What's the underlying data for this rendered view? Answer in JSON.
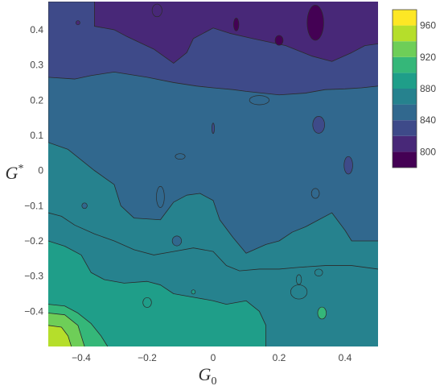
{
  "chart_data": {
    "type": "contour",
    "xlabel": "G",
    "xlabel_sub": "0",
    "ylabel": "G",
    "ylabel_sup": "*",
    "xlim": [
      -0.5,
      0.5
    ],
    "ylim": [
      -0.5,
      0.48
    ],
    "x_ticks": [
      {
        "value": -0.4,
        "label": "−0.4"
      },
      {
        "value": -0.2,
        "label": "−0.2"
      },
      {
        "value": 0,
        "label": "0"
      },
      {
        "value": 0.2,
        "label": "0.2"
      },
      {
        "value": 0.4,
        "label": "0.4"
      }
    ],
    "y_ticks": [
      {
        "value": 0.4,
        "label": "0.4"
      },
      {
        "value": 0.3,
        "label": "0.3"
      },
      {
        "value": 0.2,
        "label": "0.2"
      },
      {
        "value": 0.1,
        "label": "0.1"
      },
      {
        "value": 0,
        "label": "0"
      },
      {
        "value": -0.1,
        "label": "−0.1"
      },
      {
        "value": -0.2,
        "label": "−0.2"
      },
      {
        "value": -0.3,
        "label": "−0.3"
      },
      {
        "value": -0.4,
        "label": "−0.4"
      }
    ],
    "colorbar": {
      "range": [
        780,
        980
      ],
      "levels": [
        780,
        800,
        820,
        840,
        860,
        880,
        900,
        920,
        940,
        960,
        980
      ],
      "tick_labels": [
        {
          "value": 800,
          "label": "800"
        },
        {
          "value": 840,
          "label": "840"
        },
        {
          "value": 880,
          "label": "880"
        },
        {
          "value": 920,
          "label": "920"
        },
        {
          "value": 960,
          "label": "960"
        }
      ],
      "colors": [
        "#440154",
        "#482878",
        "#3e4a89",
        "#31688e",
        "#26828e",
        "#1f9e89",
        "#35b779",
        "#6ece58",
        "#b5de2b",
        "#fde725"
      ]
    },
    "regions": [
      {
        "level": 840,
        "color": "#3e4a89",
        "boundary_lower": [
          [
            -0.5,
            0.265
          ],
          [
            -0.42,
            0.26
          ],
          [
            -0.37,
            0.27
          ],
          [
            -0.3,
            0.28
          ],
          [
            -0.2,
            0.265
          ],
          [
            -0.12,
            0.25
          ],
          [
            -0.05,
            0.24
          ],
          [
            0.0,
            0.235
          ],
          [
            0.06,
            0.23
          ],
          [
            0.1,
            0.225
          ],
          [
            0.2,
            0.215
          ],
          [
            0.28,
            0.22
          ],
          [
            0.34,
            0.23
          ],
          [
            0.4,
            0.232
          ],
          [
            0.45,
            0.235
          ],
          [
            0.5,
            0.24
          ]
        ]
      },
      {
        "level": 820,
        "color": "#482878",
        "boundary_lower": [
          [
            -0.5,
            0.48
          ],
          [
            -0.36,
            0.48
          ],
          [
            -0.36,
            0.41
          ],
          [
            -0.3,
            0.4
          ],
          [
            -0.26,
            0.38
          ],
          [
            -0.18,
            0.345
          ],
          [
            -0.12,
            0.305
          ],
          [
            -0.08,
            0.335
          ],
          [
            -0.06,
            0.375
          ],
          [
            -0.03,
            0.39
          ],
          [
            0.0,
            0.405
          ],
          [
            0.05,
            0.39
          ],
          [
            0.12,
            0.375
          ],
          [
            0.22,
            0.355
          ],
          [
            0.3,
            0.325
          ],
          [
            0.36,
            0.31
          ],
          [
            0.42,
            0.335
          ],
          [
            0.46,
            0.355
          ],
          [
            0.5,
            0.36
          ]
        ]
      },
      {
        "level": 860,
        "color": "#31688e",
        "boundary_lower": [
          [
            -0.5,
            0.08
          ],
          [
            -0.44,
            0.06
          ],
          [
            -0.36,
            0.0
          ],
          [
            -0.3,
            -0.04
          ],
          [
            -0.28,
            -0.1
          ],
          [
            -0.24,
            -0.135
          ],
          [
            -0.16,
            -0.14
          ],
          [
            -0.12,
            -0.09
          ],
          [
            -0.08,
            -0.07
          ],
          [
            -0.04,
            -0.065
          ],
          [
            0.0,
            -0.085
          ],
          [
            0.02,
            -0.14
          ],
          [
            0.06,
            -0.19
          ],
          [
            0.1,
            -0.235
          ],
          [
            0.16,
            -0.21
          ],
          [
            0.2,
            -0.2
          ],
          [
            0.24,
            -0.175
          ],
          [
            0.28,
            -0.16
          ],
          [
            0.32,
            -0.14
          ],
          [
            0.36,
            -0.12
          ],
          [
            0.4,
            -0.17
          ],
          [
            0.42,
            -0.2
          ],
          [
            0.46,
            -0.2
          ],
          [
            0.5,
            -0.2
          ]
        ]
      },
      {
        "level": 880,
        "color": "#26828e",
        "boundary_lower": [
          [
            -0.5,
            -0.12
          ],
          [
            -0.46,
            -0.13
          ],
          [
            -0.42,
            -0.155
          ],
          [
            -0.36,
            -0.18
          ],
          [
            -0.3,
            -0.2
          ],
          [
            -0.24,
            -0.225
          ],
          [
            -0.18,
            -0.24
          ],
          [
            -0.12,
            -0.23
          ],
          [
            -0.06,
            -0.22
          ],
          [
            0.0,
            -0.23
          ],
          [
            0.04,
            -0.27
          ],
          [
            0.08,
            -0.285
          ],
          [
            0.14,
            -0.28
          ],
          [
            0.2,
            -0.28
          ],
          [
            0.26,
            -0.275
          ],
          [
            0.34,
            -0.27
          ],
          [
            0.42,
            -0.27
          ],
          [
            0.5,
            -0.28
          ]
        ]
      },
      {
        "level": 900,
        "color": "#1f9e89",
        "boundary_lower": [
          [
            -0.5,
            -0.2
          ],
          [
            -0.45,
            -0.215
          ],
          [
            -0.4,
            -0.24
          ],
          [
            -0.37,
            -0.29
          ],
          [
            -0.33,
            -0.31
          ],
          [
            -0.27,
            -0.32
          ],
          [
            -0.2,
            -0.315
          ],
          [
            -0.16,
            -0.325
          ],
          [
            -0.12,
            -0.35
          ],
          [
            -0.06,
            -0.36
          ],
          [
            0.0,
            -0.37
          ],
          [
            0.04,
            -0.38
          ],
          [
            0.1,
            -0.37
          ],
          [
            0.14,
            -0.4
          ],
          [
            0.16,
            -0.44
          ],
          [
            0.16,
            -0.5
          ]
        ]
      },
      {
        "level": 920,
        "color": "#35b779",
        "boundary_lower": [
          [
            -0.5,
            -0.38
          ],
          [
            -0.45,
            -0.385
          ],
          [
            -0.41,
            -0.405
          ],
          [
            -0.37,
            -0.435
          ],
          [
            -0.34,
            -0.47
          ],
          [
            -0.32,
            -0.5
          ]
        ]
      },
      {
        "level": 940,
        "color": "#6ece58",
        "boundary_lower": [
          [
            -0.5,
            -0.405
          ],
          [
            -0.45,
            -0.41
          ],
          [
            -0.41,
            -0.44
          ],
          [
            -0.39,
            -0.5
          ]
        ]
      },
      {
        "level": 960,
        "color": "#b5de2b",
        "boundary_lower": [
          [
            -0.5,
            -0.44
          ],
          [
            -0.46,
            -0.445
          ],
          [
            -0.44,
            -0.47
          ],
          [
            -0.43,
            -0.5
          ]
        ]
      }
    ],
    "islands": [
      {
        "x": 0.31,
        "y": 0.42,
        "rx": 0.025,
        "ry": 0.05,
        "color": "#440154"
      },
      {
        "x": 0.07,
        "y": 0.415,
        "rx": 0.008,
        "ry": 0.018,
        "color": "#440154"
      },
      {
        "x": 0.2,
        "y": 0.37,
        "rx": 0.012,
        "ry": 0.014,
        "color": "#440154"
      },
      {
        "x": -0.17,
        "y": 0.455,
        "rx": 0.015,
        "ry": 0.018,
        "color": "#482878"
      },
      {
        "x": 0.14,
        "y": 0.2,
        "rx": 0.03,
        "ry": 0.013,
        "color": "#31688e"
      },
      {
        "x": 0.32,
        "y": 0.13,
        "rx": 0.018,
        "ry": 0.024,
        "color": "#3e4a89"
      },
      {
        "x": 0.41,
        "y": 0.015,
        "rx": 0.013,
        "ry": 0.025,
        "color": "#3e4a89"
      },
      {
        "x": -0.16,
        "y": -0.075,
        "rx": 0.012,
        "ry": 0.03,
        "color": "#31688e"
      },
      {
        "x": -0.1,
        "y": 0.04,
        "rx": 0.015,
        "ry": 0.008,
        "color": "#31688e"
      },
      {
        "x": 0.31,
        "y": -0.065,
        "rx": 0.012,
        "ry": 0.014,
        "color": "#31688e"
      },
      {
        "x": -0.11,
        "y": -0.2,
        "rx": 0.014,
        "ry": 0.014,
        "color": "#31688e"
      },
      {
        "x": 0.26,
        "y": -0.31,
        "rx": 0.008,
        "ry": 0.014,
        "color": "#26828e"
      },
      {
        "x": 0.32,
        "y": -0.29,
        "rx": 0.012,
        "ry": 0.01,
        "color": "#26828e"
      },
      {
        "x": 0.26,
        "y": -0.345,
        "rx": 0.025,
        "ry": 0.02,
        "color": "#26828e"
      },
      {
        "x": 0.33,
        "y": -0.405,
        "rx": 0.013,
        "ry": 0.017,
        "color": "#35b779"
      },
      {
        "x": -0.2,
        "y": -0.375,
        "rx": 0.013,
        "ry": 0.014,
        "color": "#1f9e89"
      },
      {
        "x": -0.06,
        "y": -0.345,
        "rx": 0.006,
        "ry": 0.006,
        "color": "#1f9e89"
      },
      {
        "x": -0.39,
        "y": -0.1,
        "rx": 0.008,
        "ry": 0.008,
        "color": "#31688e"
      },
      {
        "x": 0.0,
        "y": 0.12,
        "rx": 0.003,
        "ry": 0.015,
        "color": "#3e4a89"
      },
      {
        "x": -0.41,
        "y": 0.42,
        "rx": 0.006,
        "ry": 0.006,
        "color": "#482878"
      }
    ]
  }
}
